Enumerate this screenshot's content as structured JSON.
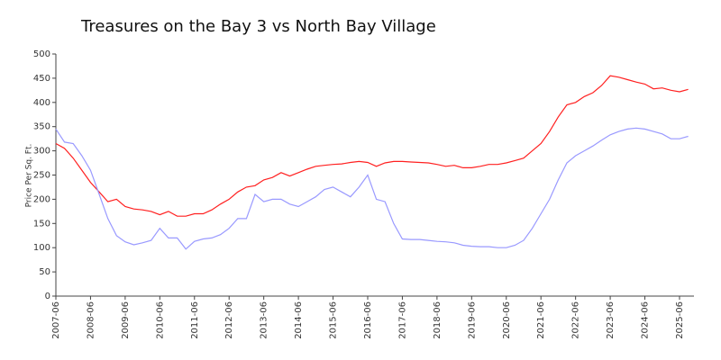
{
  "chart_data": {
    "type": "line",
    "title": "Treasures on the Bay 3 vs North Bay Village",
    "y_label": "Price Per Sq. Ft.",
    "x": [
      "2007-06",
      "2007-09",
      "2007-12",
      "2008-03",
      "2008-06",
      "2008-09",
      "2008-12",
      "2009-03",
      "2009-06",
      "2009-09",
      "2009-12",
      "2010-03",
      "2010-06",
      "2010-09",
      "2010-12",
      "2011-03",
      "2011-06",
      "2011-09",
      "2011-12",
      "2012-03",
      "2012-06",
      "2012-09",
      "2012-12",
      "2013-03",
      "2013-06",
      "2013-09",
      "2013-12",
      "2014-03",
      "2014-06",
      "2014-09",
      "2014-12",
      "2015-03",
      "2015-06",
      "2015-09",
      "2015-12",
      "2016-03",
      "2016-06",
      "2016-09",
      "2016-12",
      "2017-03",
      "2017-06",
      "2017-09",
      "2017-12",
      "2018-03",
      "2018-06",
      "2018-09",
      "2018-12",
      "2019-03",
      "2019-06",
      "2019-09",
      "2019-12",
      "2020-03",
      "2020-06",
      "2020-09",
      "2020-12",
      "2021-03",
      "2021-06",
      "2021-09",
      "2021-12",
      "2022-03",
      "2022-06",
      "2022-09",
      "2022-12",
      "2023-03",
      "2023-06",
      "2023-09",
      "2023-12",
      "2024-03",
      "2024-06",
      "2024-09",
      "2024-12",
      "2025-03",
      "2025-06",
      "2025-09"
    ],
    "series": [
      {
        "color": "#ff2020",
        "values": [
          315,
          305,
          285,
          260,
          235,
          215,
          195,
          200,
          185,
          180,
          178,
          175,
          168,
          175,
          165,
          165,
          170,
          170,
          178,
          190,
          200,
          215,
          225,
          228,
          240,
          245,
          255,
          248,
          255,
          262,
          268,
          270,
          272,
          273,
          276,
          278,
          276,
          268,
          275,
          278,
          278,
          277,
          276,
          275,
          272,
          268,
          270,
          265,
          265,
          268,
          272,
          272,
          275,
          280,
          285,
          300,
          315,
          340,
          370,
          395,
          400,
          412,
          420,
          435,
          455,
          452,
          447,
          442,
          438,
          428,
          430,
          425,
          422,
          427
        ]
      },
      {
        "color": "#9999ff",
        "values": [
          345,
          318,
          315,
          290,
          260,
          210,
          160,
          125,
          112,
          106,
          110,
          115,
          140,
          120,
          120,
          97,
          113,
          118,
          120,
          127,
          140,
          160,
          160,
          210,
          195,
          200,
          200,
          190,
          185,
          195,
          205,
          220,
          225,
          215,
          205,
          225,
          250,
          200,
          195,
          150,
          118,
          117,
          117,
          115,
          113,
          112,
          110,
          105,
          103,
          102,
          102,
          100,
          100,
          105,
          115,
          140,
          170,
          200,
          240,
          275,
          290,
          300,
          310,
          322,
          333,
          340,
          345,
          347,
          345,
          340,
          335,
          325,
          325,
          330
        ]
      }
    ],
    "xlim": [
      "2007-06",
      "2025-11"
    ],
    "xticks": [
      "2007-06",
      "2008-06",
      "2009-06",
      "2010-06",
      "2011-06",
      "2012-06",
      "2013-06",
      "2014-06",
      "2015-06",
      "2016-06",
      "2017-06",
      "2018-06",
      "2019-06",
      "2020-06",
      "2021-06",
      "2022-06",
      "2023-06",
      "2024-06",
      "2025-06"
    ],
    "ylim": [
      0,
      500
    ],
    "yticks": [
      0,
      50,
      100,
      150,
      200,
      250,
      300,
      350,
      400,
      450,
      500
    ],
    "grid": false
  }
}
